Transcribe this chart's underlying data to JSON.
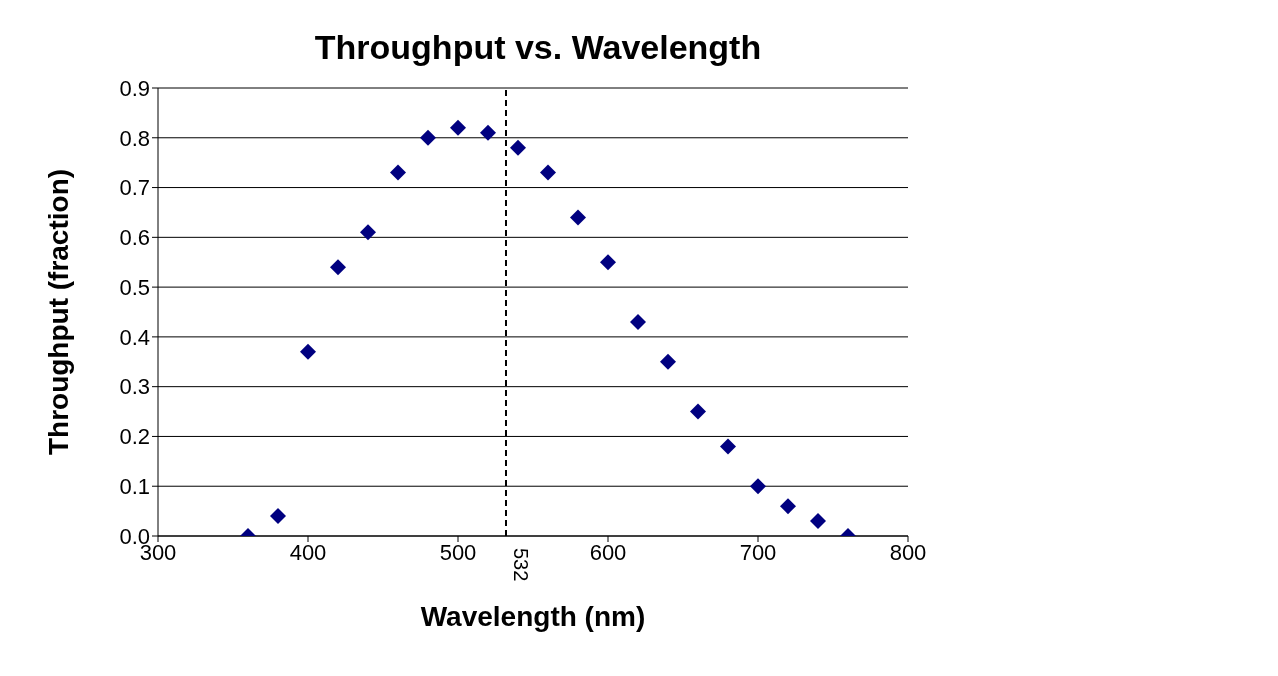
{
  "chart_data": {
    "type": "scatter",
    "title": "Throughput vs. Wavelength",
    "xlabel": "Wavelength (nm)",
    "ylabel": "Throughput (fraction)",
    "x": [
      360,
      380,
      400,
      420,
      440,
      460,
      480,
      500,
      520,
      540,
      560,
      580,
      600,
      620,
      640,
      660,
      680,
      700,
      720,
      740,
      760
    ],
    "series": [
      {
        "color": "#000080",
        "values": [
          0.0,
          0.04,
          0.37,
          0.54,
          0.61,
          0.73,
          0.8,
          0.82,
          0.81,
          0.78,
          0.73,
          0.64,
          0.55,
          0.43,
          0.35,
          0.25,
          0.18,
          0.1,
          0.06,
          0.03,
          0.0
        ]
      }
    ],
    "xlim": [
      300,
      800
    ],
    "xticks": [
      300,
      400,
      500,
      600,
      700,
      800
    ],
    "ylim": [
      0,
      0.9
    ],
    "yticks": [
      {
        "value": 0,
        "label": "0.0"
      },
      {
        "value": 0.1,
        "label": "0.1"
      },
      {
        "value": 0.2,
        "label": "0.2"
      },
      {
        "value": 0.3,
        "label": "0.3"
      },
      {
        "value": 0.4,
        "label": "0.4"
      },
      {
        "value": 0.5,
        "label": "0.5"
      },
      {
        "value": 0.6,
        "label": "0.6"
      },
      {
        "value": 0.7,
        "label": "0.7"
      },
      {
        "value": 0.8,
        "label": "0.8"
      },
      {
        "value": 0.9,
        "label": "0.9"
      }
    ],
    "ref_lines": [
      {
        "axis": "x",
        "value": 532,
        "label": "532",
        "line_style": "dashed",
        "color": "#000000"
      }
    ],
    "grid": "y",
    "marker": "diamond"
  }
}
